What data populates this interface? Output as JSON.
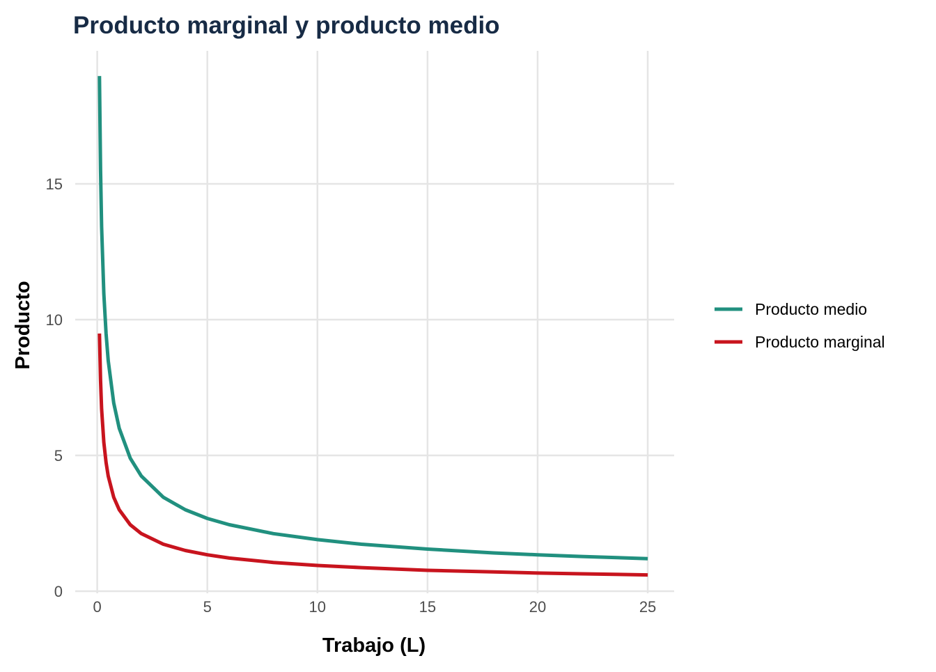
{
  "chart_data": {
    "type": "line",
    "title": "Producto marginal y producto medio",
    "xlabel": "Trabajo (L)",
    "ylabel": "Producto",
    "xlim": [
      -1.0,
      26.2
    ],
    "ylim": [
      0,
      19.9
    ],
    "xticks": [
      0,
      5,
      10,
      15,
      20,
      25
    ],
    "yticks": [
      0,
      5,
      10,
      15
    ],
    "grid": true,
    "legend_position": "right",
    "x": [
      0.1,
      0.15,
      0.2,
      0.3,
      0.4,
      0.5,
      0.75,
      1,
      1.5,
      2,
      3,
      4,
      5,
      6,
      8,
      10,
      12,
      15,
      18,
      20,
      22,
      25
    ],
    "series": [
      {
        "name": "Producto medio",
        "color": "#21907f",
        "values": [
          18.97,
          15.49,
          13.42,
          10.95,
          9.49,
          8.49,
          6.93,
          6.0,
          4.9,
          4.24,
          3.46,
          3.0,
          2.68,
          2.45,
          2.12,
          1.9,
          1.73,
          1.55,
          1.41,
          1.34,
          1.28,
          1.2
        ]
      },
      {
        "name": "Producto marginal",
        "color": "#c8141e",
        "values": [
          9.49,
          7.75,
          6.71,
          5.48,
          4.74,
          4.24,
          3.46,
          3.0,
          2.45,
          2.12,
          1.73,
          1.5,
          1.34,
          1.22,
          1.06,
          0.95,
          0.87,
          0.77,
          0.71,
          0.67,
          0.64,
          0.6
        ]
      }
    ]
  }
}
